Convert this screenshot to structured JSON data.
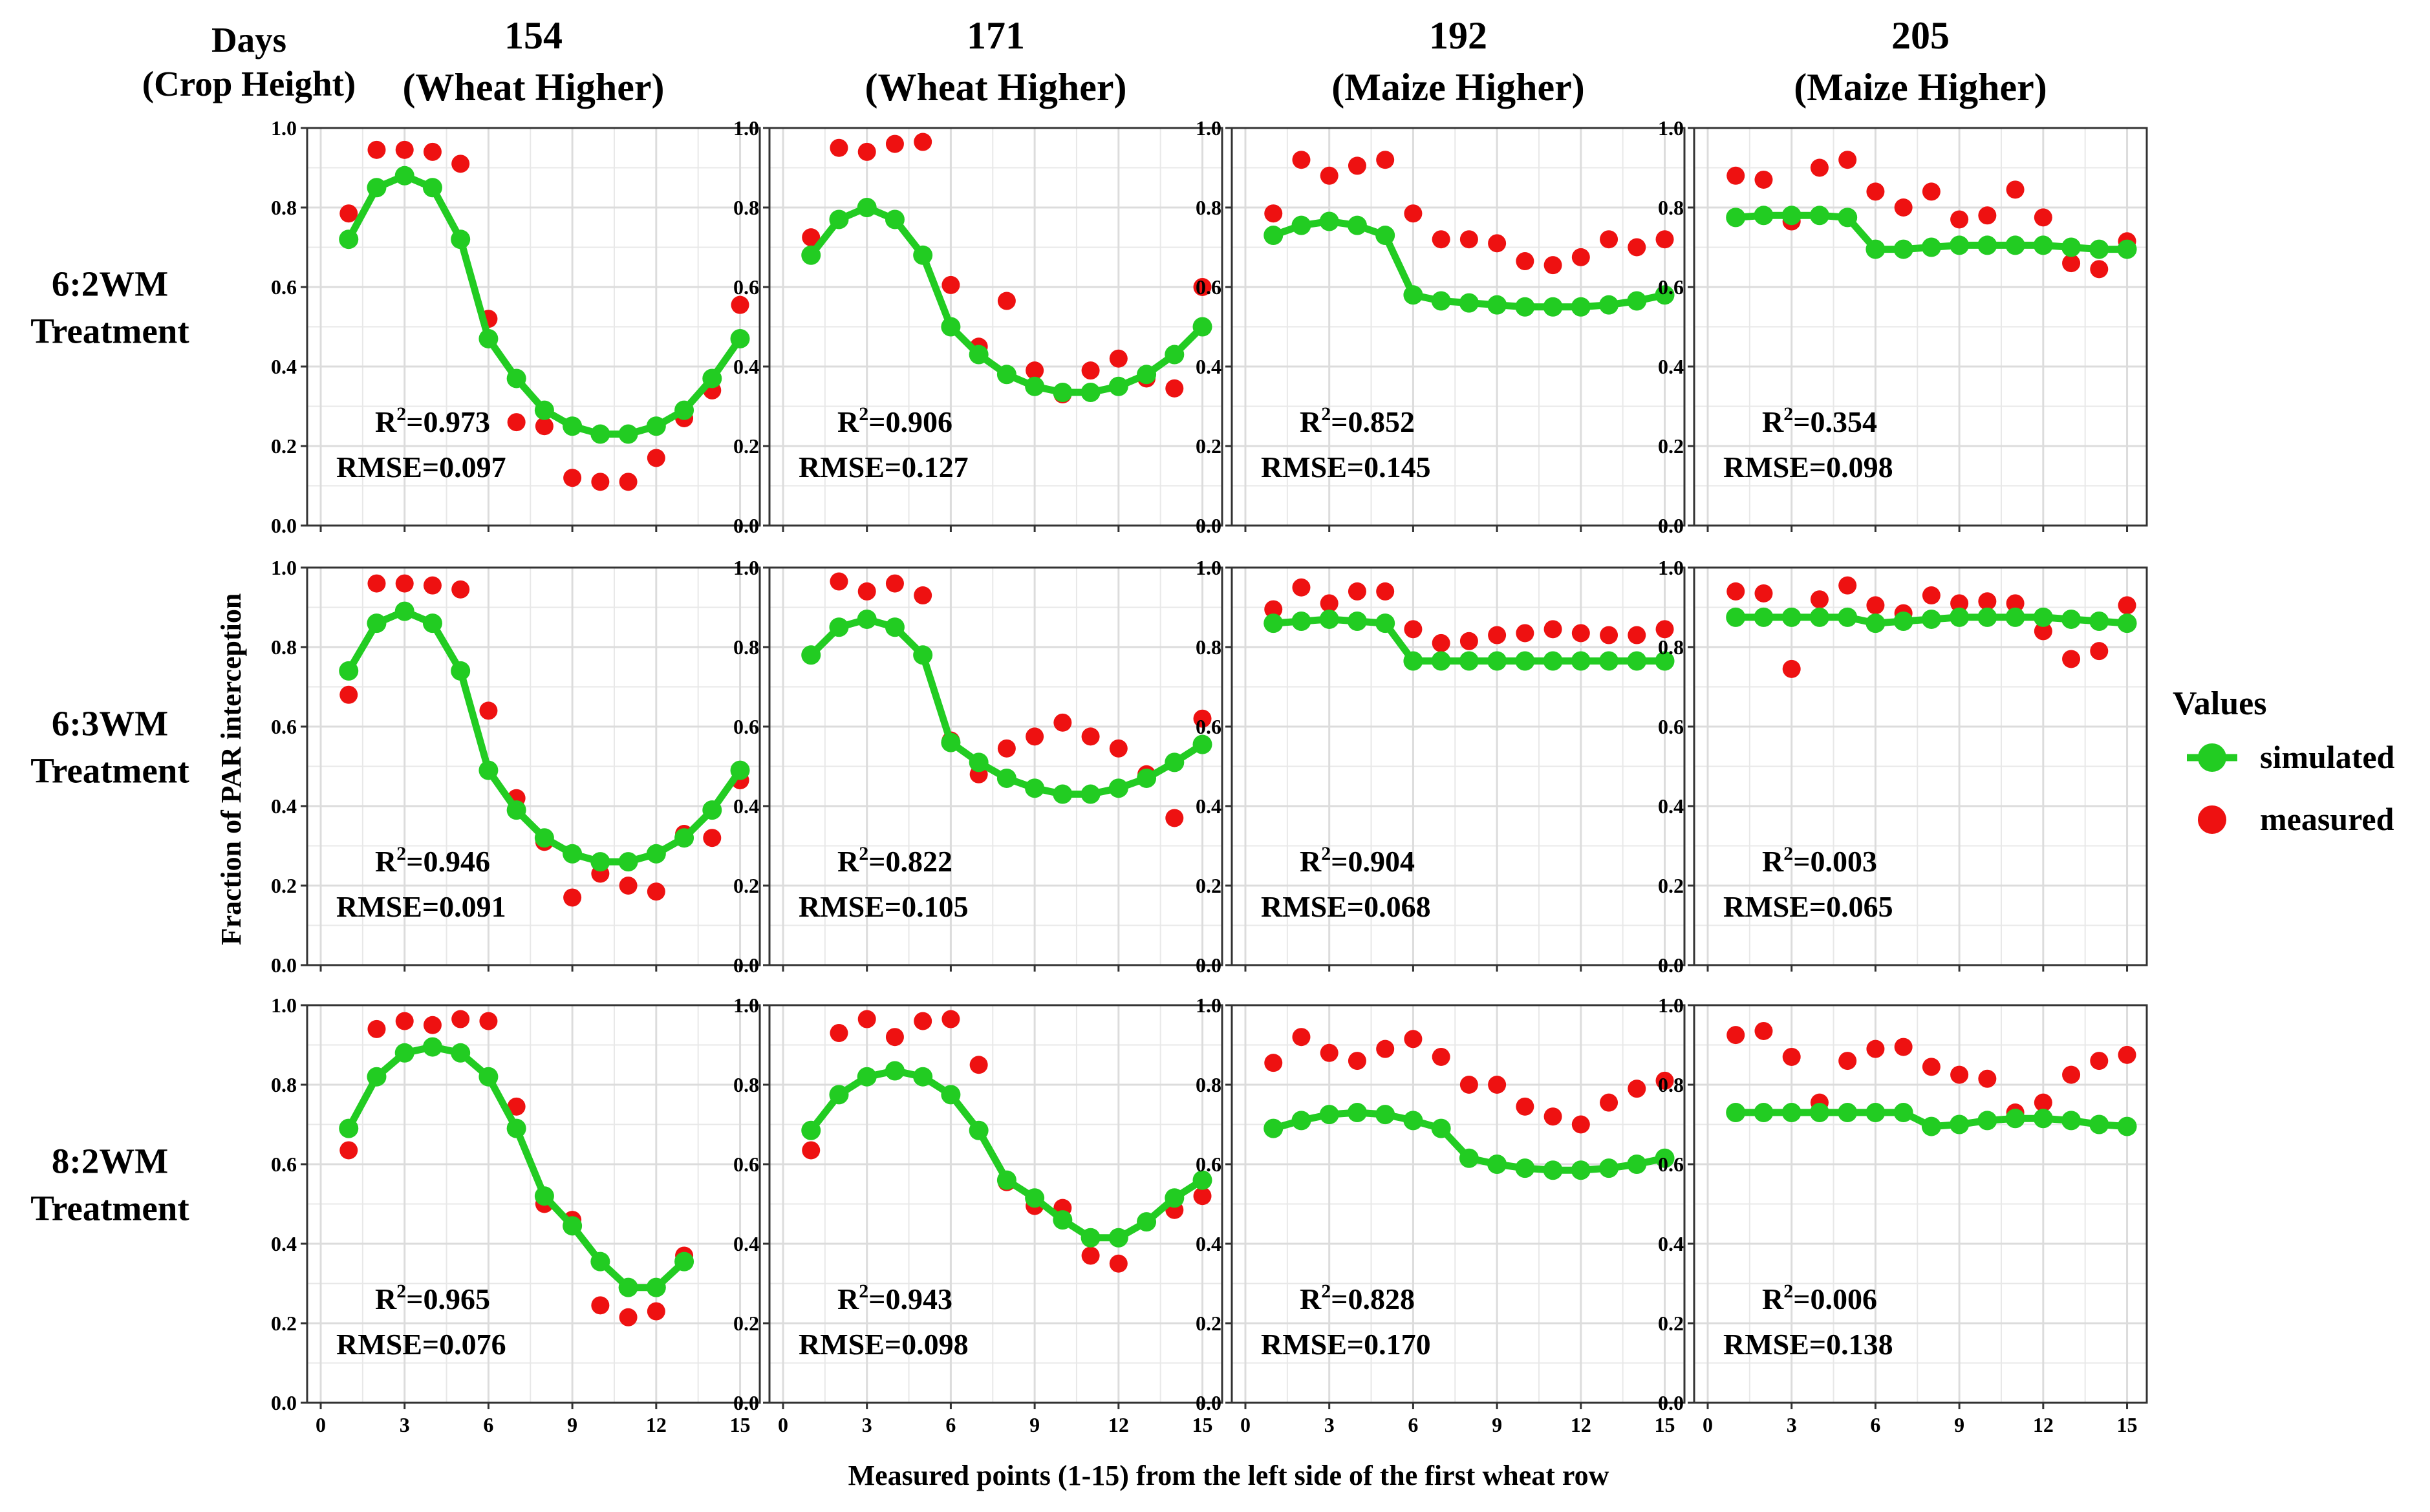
{
  "figure": {
    "header_label_line1": "Days",
    "header_label_line2": "(Crop Height)",
    "ylabel": "Fraction of PAR interception",
    "xlabel": "Measured points (1-15) from the left side of the first wheat row",
    "legend": {
      "title": "Values",
      "items": [
        {
          "label": "simulated",
          "color": "#22cc22"
        },
        {
          "label": "measured",
          "color": "#ee1111"
        }
      ]
    },
    "colors": {
      "simulated": "#22cc22",
      "measured": "#ee1111",
      "grid": "#e8e8e8",
      "frame": "#333333"
    }
  },
  "chart_data": {
    "type": "scatter",
    "x_ticks": [
      "0",
      "3",
      "6",
      "9",
      "12",
      "15"
    ],
    "x_tick_values": [
      0,
      3,
      6,
      9,
      12,
      15
    ],
    "y_ticks": [
      "0.0",
      "0.2",
      "0.4",
      "0.6",
      "0.8",
      "1.0"
    ],
    "y_tick_values": [
      0,
      0.2,
      0.4,
      0.6,
      0.8,
      1.0
    ],
    "xlim": [
      0,
      15.3
    ],
    "ylim": [
      0,
      1.0
    ],
    "columns": [
      {
        "day": "154",
        "height": "(Wheat Higher)"
      },
      {
        "day": "171",
        "height": "(Wheat Higher)"
      },
      {
        "day": "192",
        "height": "(Maize Higher)"
      },
      {
        "day": "205",
        "height": "(Maize Higher)"
      }
    ],
    "rows": [
      {
        "line1": "6:2WM",
        "line2": "Treatment"
      },
      {
        "line1": "6:3WM",
        "line2": "Treatment"
      },
      {
        "line1": "8:2WM",
        "line2": "Treatment"
      }
    ],
    "panels": [
      [
        {
          "r2_value": "=0.973",
          "rmse": "RMSE=0.097",
          "simulated": {
            "x": [
              1,
              2,
              3,
              4,
              5,
              6,
              7,
              8,
              9,
              10,
              11,
              12,
              13,
              14,
              15
            ],
            "y": [
              0.72,
              0.85,
              0.88,
              0.85,
              0.72,
              0.47,
              0.37,
              0.29,
              0.25,
              0.23,
              0.23,
              0.25,
              0.29,
              0.37,
              0.47
            ]
          },
          "measured": {
            "x": [
              1,
              2,
              3,
              4,
              5,
              6,
              7,
              8,
              9,
              10,
              11,
              12,
              13,
              14,
              15
            ],
            "y": [
              0.785,
              0.945,
              0.945,
              0.94,
              0.91,
              0.52,
              0.26,
              0.25,
              0.12,
              0.11,
              0.11,
              0.17,
              0.27,
              0.34,
              0.555
            ]
          }
        },
        {
          "r2_value": "=0.906",
          "rmse": "RMSE=0.127",
          "simulated": {
            "x": [
              1,
              2,
              3,
              4,
              5,
              6,
              7,
              8,
              9,
              10,
              11,
              12,
              13,
              14,
              15
            ],
            "y": [
              0.68,
              0.77,
              0.8,
              0.77,
              0.68,
              0.5,
              0.43,
              0.38,
              0.35,
              0.335,
              0.335,
              0.35,
              0.38,
              0.43,
              0.5
            ]
          },
          "measured": {
            "x": [
              1,
              2,
              3,
              4,
              5,
              6,
              7,
              8,
              9,
              10,
              11,
              12,
              13,
              14,
              15
            ],
            "y": [
              0.725,
              0.95,
              0.94,
              0.96,
              0.965,
              0.605,
              0.45,
              0.565,
              0.39,
              0.33,
              0.39,
              0.42,
              0.37,
              0.345,
              0.6
            ]
          }
        },
        {
          "r2_value": "=0.852",
          "rmse": "RMSE=0.145",
          "simulated": {
            "x": [
              1,
              2,
              3,
              4,
              5,
              6,
              7,
              8,
              9,
              10,
              11,
              12,
              13,
              14,
              15
            ],
            "y": [
              0.73,
              0.755,
              0.765,
              0.755,
              0.73,
              0.58,
              0.565,
              0.56,
              0.555,
              0.55,
              0.55,
              0.55,
              0.555,
              0.565,
              0.58
            ]
          },
          "measured": {
            "x": [
              1,
              2,
              3,
              4,
              5,
              6,
              7,
              8,
              9,
              10,
              11,
              12,
              13,
              14,
              15
            ],
            "y": [
              0.785,
              0.92,
              0.88,
              0.905,
              0.92,
              0.785,
              0.72,
              0.72,
              0.71,
              0.665,
              0.655,
              0.675,
              0.72,
              0.7,
              0.72
            ]
          }
        },
        {
          "r2_value": "=0.354",
          "rmse": "RMSE=0.098",
          "simulated": {
            "x": [
              1,
              2,
              3,
              4,
              5,
              6,
              7,
              8,
              9,
              10,
              11,
              12,
              13,
              14,
              15
            ],
            "y": [
              0.775,
              0.78,
              0.78,
              0.78,
              0.775,
              0.695,
              0.695,
              0.7,
              0.705,
              0.705,
              0.705,
              0.705,
              0.7,
              0.695,
              0.695
            ]
          },
          "measured": {
            "x": [
              1,
              2,
              3,
              4,
              5,
              6,
              7,
              8,
              9,
              10,
              11,
              12,
              13,
              14,
              15
            ],
            "y": [
              0.88,
              0.87,
              0.765,
              0.9,
              0.92,
              0.84,
              0.8,
              0.84,
              0.77,
              0.78,
              0.845,
              0.775,
              0.66,
              0.645,
              0.715
            ]
          }
        }
      ],
      [
        {
          "r2_value": "=0.946",
          "rmse": "RMSE=0.091",
          "simulated": {
            "x": [
              1,
              2,
              3,
              4,
              5,
              6,
              7,
              8,
              9,
              10,
              11,
              12,
              13,
              14,
              15
            ],
            "y": [
              0.74,
              0.86,
              0.89,
              0.86,
              0.74,
              0.49,
              0.39,
              0.32,
              0.28,
              0.26,
              0.26,
              0.28,
              0.32,
              0.39,
              0.49
            ]
          },
          "measured": {
            "x": [
              1,
              2,
              3,
              4,
              5,
              6,
              7,
              8,
              9,
              10,
              11,
              12,
              13,
              14,
              15
            ],
            "y": [
              0.68,
              0.96,
              0.96,
              0.955,
              0.945,
              0.64,
              0.42,
              0.31,
              0.17,
              0.23,
              0.2,
              0.185,
              0.33,
              0.32,
              0.465
            ]
          }
        },
        {
          "r2_value": "=0.822",
          "rmse": "RMSE=0.105",
          "simulated": {
            "x": [
              1,
              2,
              3,
              4,
              5,
              6,
              7,
              8,
              9,
              10,
              11,
              12,
              13,
              14,
              15
            ],
            "y": [
              0.78,
              0.85,
              0.87,
              0.85,
              0.78,
              0.56,
              0.51,
              0.47,
              0.445,
              0.43,
              0.43,
              0.445,
              0.47,
              0.51,
              0.555
            ]
          },
          "measured": {
            "x": [
              1,
              2,
              3,
              4,
              5,
              6,
              7,
              8,
              9,
              10,
              11,
              12,
              13,
              14,
              15
            ],
            "y": [
              0.78,
              0.965,
              0.94,
              0.96,
              0.93,
              0.565,
              0.48,
              0.545,
              0.575,
              0.61,
              0.575,
              0.545,
              0.48,
              0.37,
              0.62
            ]
          }
        },
        {
          "r2_value": "=0.904",
          "rmse": "RMSE=0.068",
          "simulated": {
            "x": [
              1,
              2,
              3,
              4,
              5,
              6,
              7,
              8,
              9,
              10,
              11,
              12,
              13,
              14,
              15
            ],
            "y": [
              0.86,
              0.865,
              0.87,
              0.865,
              0.86,
              0.765,
              0.765,
              0.765,
              0.765,
              0.765,
              0.765,
              0.765,
              0.765,
              0.765,
              0.765
            ]
          },
          "measured": {
            "x": [
              1,
              2,
              3,
              4,
              5,
              6,
              7,
              8,
              9,
              10,
              11,
              12,
              13,
              14,
              15
            ],
            "y": [
              0.895,
              0.95,
              0.91,
              0.94,
              0.94,
              0.845,
              0.81,
              0.815,
              0.83,
              0.835,
              0.845,
              0.835,
              0.83,
              0.83,
              0.845
            ]
          }
        },
        {
          "r2_value": "=0.003",
          "rmse": "RMSE=0.065",
          "simulated": {
            "x": [
              1,
              2,
              3,
              4,
              5,
              6,
              7,
              8,
              9,
              10,
              11,
              12,
              13,
              14,
              15
            ],
            "y": [
              0.875,
              0.875,
              0.875,
              0.875,
              0.875,
              0.86,
              0.865,
              0.87,
              0.875,
              0.875,
              0.875,
              0.875,
              0.87,
              0.865,
              0.86
            ]
          },
          "measured": {
            "x": [
              1,
              2,
              3,
              4,
              5,
              6,
              7,
              8,
              9,
              10,
              11,
              12,
              13,
              14,
              15
            ],
            "y": [
              0.94,
              0.935,
              0.745,
              0.92,
              0.955,
              0.905,
              0.885,
              0.93,
              0.91,
              0.915,
              0.91,
              0.84,
              0.77,
              0.79,
              0.905
            ]
          }
        }
      ],
      [
        {
          "r2_value": "=0.965",
          "rmse": "RMSE=0.076",
          "simulated": {
            "x": [
              1,
              2,
              3,
              4,
              5,
              6,
              7,
              8,
              9,
              10,
              11,
              12,
              13
            ],
            "y": [
              0.69,
              0.82,
              0.88,
              0.895,
              0.88,
              0.82,
              0.69,
              0.52,
              0.445,
              0.355,
              0.29,
              0.29,
              0.355
            ]
          },
          "measured": {
            "x": [
              1,
              2,
              3,
              4,
              5,
              6,
              7,
              8,
              9,
              10,
              11,
              12,
              13
            ],
            "y": [
              0.635,
              0.94,
              0.96,
              0.95,
              0.965,
              0.96,
              0.745,
              0.5,
              0.46,
              0.245,
              0.215,
              0.23,
              0.37
            ]
          }
        },
        {
          "r2_value": "=0.943",
          "rmse": "RMSE=0.098",
          "simulated": {
            "x": [
              1,
              2,
              3,
              4,
              5,
              6,
              7,
              8,
              9,
              10,
              11,
              12,
              13,
              14,
              15
            ],
            "y": [
              0.685,
              0.775,
              0.82,
              0.835,
              0.82,
              0.775,
              0.685,
              0.56,
              0.515,
              0.46,
              0.415,
              0.415,
              0.455,
              0.515,
              0.56
            ]
          },
          "measured": {
            "x": [
              1,
              2,
              3,
              4,
              5,
              6,
              7,
              8,
              9,
              10,
              11,
              12,
              13,
              14,
              15
            ],
            "y": [
              0.635,
              0.93,
              0.965,
              0.92,
              0.96,
              0.965,
              0.85,
              0.555,
              0.495,
              0.49,
              0.37,
              0.35,
              0.455,
              0.485,
              0.52
            ]
          }
        },
        {
          "r2_value": "=0.828",
          "rmse": "RMSE=0.170",
          "simulated": {
            "x": [
              1,
              2,
              3,
              4,
              5,
              6,
              7,
              8,
              9,
              10,
              11,
              12,
              13,
              14,
              15
            ],
            "y": [
              0.69,
              0.71,
              0.725,
              0.73,
              0.725,
              0.71,
              0.69,
              0.615,
              0.6,
              0.59,
              0.585,
              0.585,
              0.59,
              0.6,
              0.615
            ]
          },
          "measured": {
            "x": [
              1,
              2,
              3,
              4,
              5,
              6,
              7,
              8,
              9,
              10,
              11,
              12,
              13,
              14,
              15
            ],
            "y": [
              0.855,
              0.92,
              0.88,
              0.86,
              0.89,
              0.915,
              0.87,
              0.8,
              0.8,
              0.745,
              0.72,
              0.7,
              0.755,
              0.79,
              0.81
            ]
          }
        },
        {
          "r2_value": "=0.006",
          "rmse": "RMSE=0.138",
          "simulated": {
            "x": [
              1,
              2,
              3,
              4,
              5,
              6,
              7,
              8,
              9,
              10,
              11,
              12,
              13,
              14,
              15
            ],
            "y": [
              0.73,
              0.73,
              0.73,
              0.73,
              0.73,
              0.73,
              0.73,
              0.695,
              0.7,
              0.71,
              0.715,
              0.715,
              0.71,
              0.7,
              0.695
            ]
          },
          "measured": {
            "x": [
              1,
              2,
              3,
              4,
              5,
              6,
              7,
              8,
              9,
              10,
              11,
              12,
              13,
              14,
              15
            ],
            "y": [
              0.925,
              0.935,
              0.87,
              0.755,
              0.86,
              0.89,
              0.895,
              0.845,
              0.825,
              0.815,
              0.73,
              0.755,
              0.825,
              0.86,
              0.875
            ]
          }
        }
      ]
    ]
  }
}
